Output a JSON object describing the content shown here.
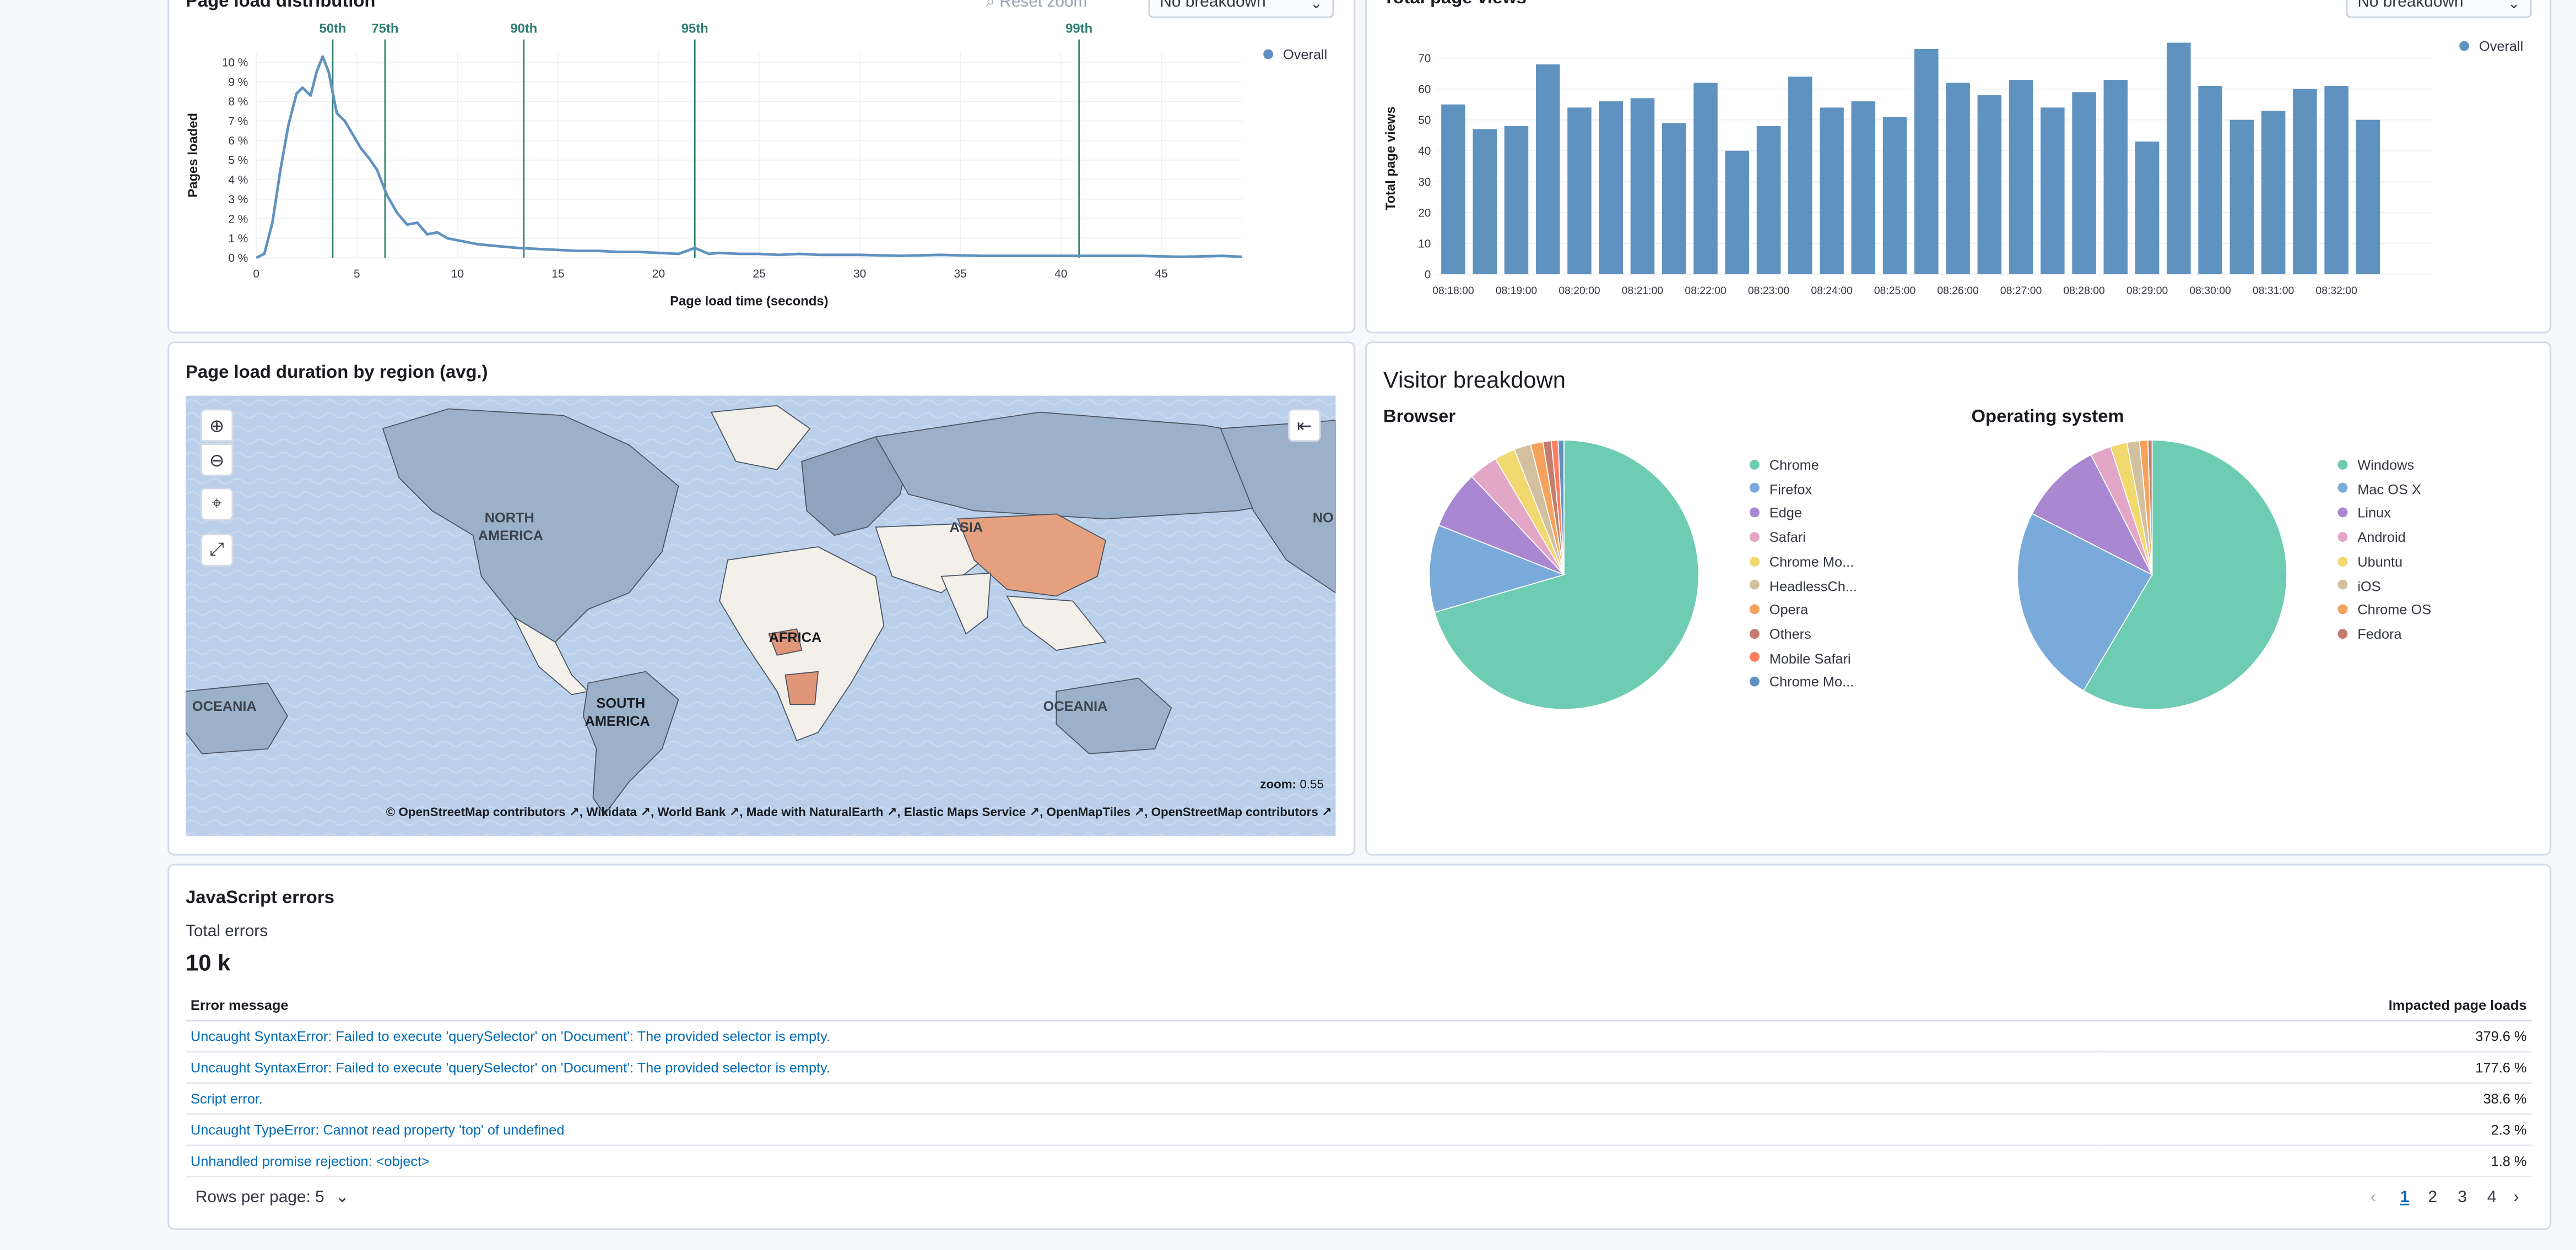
{
  "page_load_distribution": {
    "title": "Page load distribution",
    "reset_zoom": "Reset zoom",
    "breakdown_select": "No breakdown",
    "legend": "Overall",
    "percentiles": [
      "50th",
      "75th",
      "90th",
      "95th",
      "99th"
    ],
    "chart_data": {
      "type": "line",
      "xlabel": "Page load time (seconds)",
      "ylabel": "Pages loaded",
      "x_ticks": [
        "0",
        "5",
        "10",
        "15",
        "20",
        "25",
        "30",
        "35",
        "40",
        "45"
      ],
      "y_ticks": [
        "0 %",
        "1 %",
        "2 %",
        "3 %",
        "4 %",
        "5 %",
        "6 %",
        "7 %",
        "8 %",
        "9 %",
        "10 %"
      ],
      "xlim": [
        0,
        49
      ],
      "ylim": [
        0,
        10.5
      ],
      "percentile_lines": [
        {
          "label": "50th",
          "x": 3.8
        },
        {
          "label": "75th",
          "x": 6.4
        },
        {
          "label": "90th",
          "x": 13.3
        },
        {
          "label": "95th",
          "x": 21.8
        },
        {
          "label": "99th",
          "x": 40.9
        }
      ],
      "series": [
        {
          "name": "Overall",
          "x": [
            0,
            0.4,
            0.8,
            1.2,
            1.6,
            2.0,
            2.3,
            2.7,
            3.0,
            3.3,
            3.6,
            4.0,
            4.4,
            4.8,
            5.2,
            5.6,
            6.0,
            6.5,
            7.0,
            7.5,
            8.0,
            8.5,
            9.0,
            9.5,
            10.0,
            11.0,
            12.0,
            13.0,
            14.0,
            15.0,
            16.0,
            17.0,
            18.0,
            19.0,
            20.0,
            21.0,
            21.8,
            22.5,
            23.0,
            24.0,
            25.0,
            26.0,
            27.0,
            28.0,
            30.0,
            32.0,
            34.0,
            36.0,
            38.0,
            40.0,
            42.0,
            44.0,
            46.0,
            48.0,
            49.0
          ],
          "y": [
            0,
            0.2,
            1.8,
            4.5,
            6.8,
            8.4,
            8.7,
            8.3,
            9.5,
            10.3,
            9.5,
            7.4,
            7.0,
            6.3,
            5.6,
            5.1,
            4.5,
            3.2,
            2.3,
            1.7,
            1.8,
            1.2,
            1.3,
            1.0,
            0.9,
            0.7,
            0.6,
            0.5,
            0.45,
            0.4,
            0.35,
            0.35,
            0.3,
            0.3,
            0.25,
            0.2,
            0.5,
            0.2,
            0.25,
            0.2,
            0.2,
            0.15,
            0.2,
            0.15,
            0.15,
            0.1,
            0.15,
            0.1,
            0.1,
            0.1,
            0.1,
            0.1,
            0.05,
            0.1,
            0.05
          ]
        }
      ]
    }
  },
  "total_page_views": {
    "title": "Total page views",
    "breakdown_select": "No breakdown",
    "legend": "Overall",
    "chart_data": {
      "type": "bar",
      "ylabel": "Total page views",
      "ylim": [
        0,
        75
      ],
      "y_ticks": [
        "0",
        "10",
        "20",
        "30",
        "40",
        "50",
        "60",
        "70"
      ],
      "x_ticks": [
        "08:18:00",
        "08:19:00",
        "08:20:00",
        "08:21:00",
        "08:22:00",
        "08:23:00",
        "08:24:00",
        "08:25:00",
        "08:26:00",
        "08:27:00",
        "08:28:00",
        "08:29:00",
        "08:30:00",
        "08:31:00",
        "08:32:00"
      ],
      "series": [
        {
          "name": "Overall",
          "values": [
            55,
            47,
            48,
            68,
            54,
            56,
            57,
            49,
            62,
            40,
            48,
            64,
            54,
            56,
            51,
            73,
            62,
            58,
            63,
            54,
            59,
            63,
            43,
            75,
            61,
            50,
            53,
            60,
            61,
            50
          ]
        }
      ]
    }
  },
  "map": {
    "title": "Page load duration by region (avg.)",
    "zoom_label": "zoom:",
    "zoom_value": "0.55",
    "region_labels": [
      "NORTH",
      "AMERICA",
      "ASIA",
      "AFRICA",
      "SOUTH",
      "AMERICA",
      "OCEANIA",
      "OCEANIA",
      "NO"
    ],
    "attribution": [
      "© OpenStreetMap contributors",
      "Wikidata",
      "World Bank",
      "Made with NaturalEarth",
      "Elastic Maps Service",
      "OpenMapTiles",
      "OpenStreetMap contributors"
    ]
  },
  "visitor_breakdown": {
    "title": "Visitor breakdown",
    "browser": {
      "title": "Browser",
      "chart_data": {
        "type": "pie",
        "labels": [
          "Chrome",
          "Firefox",
          "Edge",
          "Safari",
          "Chrome Mo...",
          "HeadlessCh...",
          "Opera",
          "Others",
          "Mobile Safari",
          "Chrome Mo..."
        ],
        "values": [
          70.5,
          10.5,
          7.0,
          3.5,
          2.5,
          2.0,
          1.5,
          1.0,
          0.8,
          0.7
        ],
        "colors": [
          "#6dccb1",
          "#79aad9",
          "#a987d1",
          "#e4a6c7",
          "#f1d86f",
          "#d2c0a0",
          "#f5a35c",
          "#c47c6c",
          "#ff7e62",
          "#6092c0"
        ]
      }
    },
    "os": {
      "title": "Operating system",
      "chart_data": {
        "type": "pie",
        "labels": [
          "Windows",
          "Mac OS X",
          "Linux",
          "Android",
          "Ubuntu",
          "iOS",
          "Chrome OS",
          "Fedora"
        ],
        "values": [
          58.5,
          24.0,
          10.0,
          2.5,
          2.0,
          1.5,
          1.0,
          0.5
        ],
        "colors": [
          "#6dccb1",
          "#79aad9",
          "#a987d1",
          "#e4a6c7",
          "#f1d86f",
          "#d2c0a0",
          "#f5a35c",
          "#c47c6c"
        ]
      }
    }
  },
  "js_errors": {
    "title": "JavaScript errors",
    "total_label": "Total errors",
    "total_value": "10 k",
    "columns": [
      "Error message",
      "Impacted page loads"
    ],
    "rows": [
      {
        "message": "Uncaught SyntaxError: Failed to execute 'querySelector' on 'Document': The provided selector is empty.",
        "impact": "379.6 %"
      },
      {
        "message": "Uncaught SyntaxError: Failed to execute 'querySelector' on 'Document': The provided selector is empty.",
        "impact": "177.6 %"
      },
      {
        "message": "Script error.",
        "impact": "38.6 %"
      },
      {
        "message": "Uncaught TypeError: Cannot read property 'top' of undefined",
        "impact": "2.3 %"
      },
      {
        "message": "Unhandled promise rejection: <object>",
        "impact": "1.8 %"
      }
    ],
    "rows_per_page": "Rows per page: 5",
    "pages": [
      "1",
      "2",
      "3",
      "4"
    ],
    "current_page": "1"
  }
}
